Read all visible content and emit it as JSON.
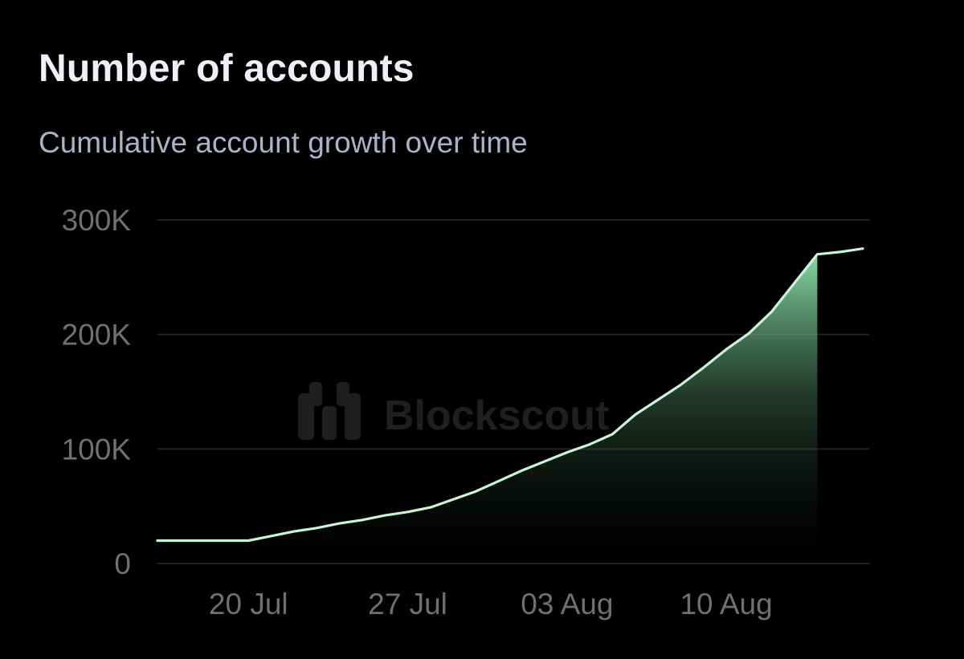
{
  "header": {
    "title": "Number of accounts",
    "subtitle": "Cumulative account growth over time"
  },
  "watermark": {
    "text": "Blockscout",
    "icon": "blockscout-logo-icon"
  },
  "colors": {
    "background": "#000000",
    "line": "#c8f5d6",
    "area_top": "#8fe8ae",
    "grid": "#222226",
    "tick_text": "#6f6f76"
  },
  "chart_data": {
    "type": "area",
    "title": "Number of accounts",
    "subtitle": "Cumulative account growth over time",
    "xlabel": "",
    "ylabel": "",
    "x": [
      "2025-07-16",
      "2025-07-17",
      "2025-07-18",
      "2025-07-19",
      "2025-07-20",
      "2025-07-21",
      "2025-07-22",
      "2025-07-23",
      "2025-07-24",
      "2025-07-25",
      "2025-07-26",
      "2025-07-27",
      "2025-07-28",
      "2025-07-29",
      "2025-07-30",
      "2025-07-31",
      "2025-08-01",
      "2025-08-02",
      "2025-08-03",
      "2025-08-04",
      "2025-08-05",
      "2025-08-06",
      "2025-08-07",
      "2025-08-08",
      "2025-08-09",
      "2025-08-10",
      "2025-08-11",
      "2025-08-12",
      "2025-08-13",
      "2025-08-14",
      "2025-08-15",
      "2025-08-16"
    ],
    "series": [
      {
        "values": [
          20000,
          20000,
          20000,
          20000,
          20000,
          24000,
          28000,
          31000,
          35000,
          38000,
          42000,
          45000,
          49000,
          56000,
          63000,
          72000,
          81000,
          89000,
          97000,
          104000,
          113000,
          130000,
          143000,
          156000,
          171000,
          187000,
          201000,
          220000,
          245000,
          270000,
          272000,
          275000
        ]
      }
    ],
    "ylim": [
      0,
      300000
    ],
    "yticks": [
      0,
      100000,
      200000,
      300000
    ],
    "ytick_labels": [
      "0",
      "100K",
      "200K",
      "300K"
    ],
    "xtick_dates": [
      "2025-07-20",
      "2025-07-27",
      "2025-08-03",
      "2025-08-10"
    ],
    "xtick_labels": [
      "20 Jul",
      "27 Jul",
      "03 Aug",
      "10 Aug"
    ],
    "grid": true,
    "legend": "none"
  }
}
